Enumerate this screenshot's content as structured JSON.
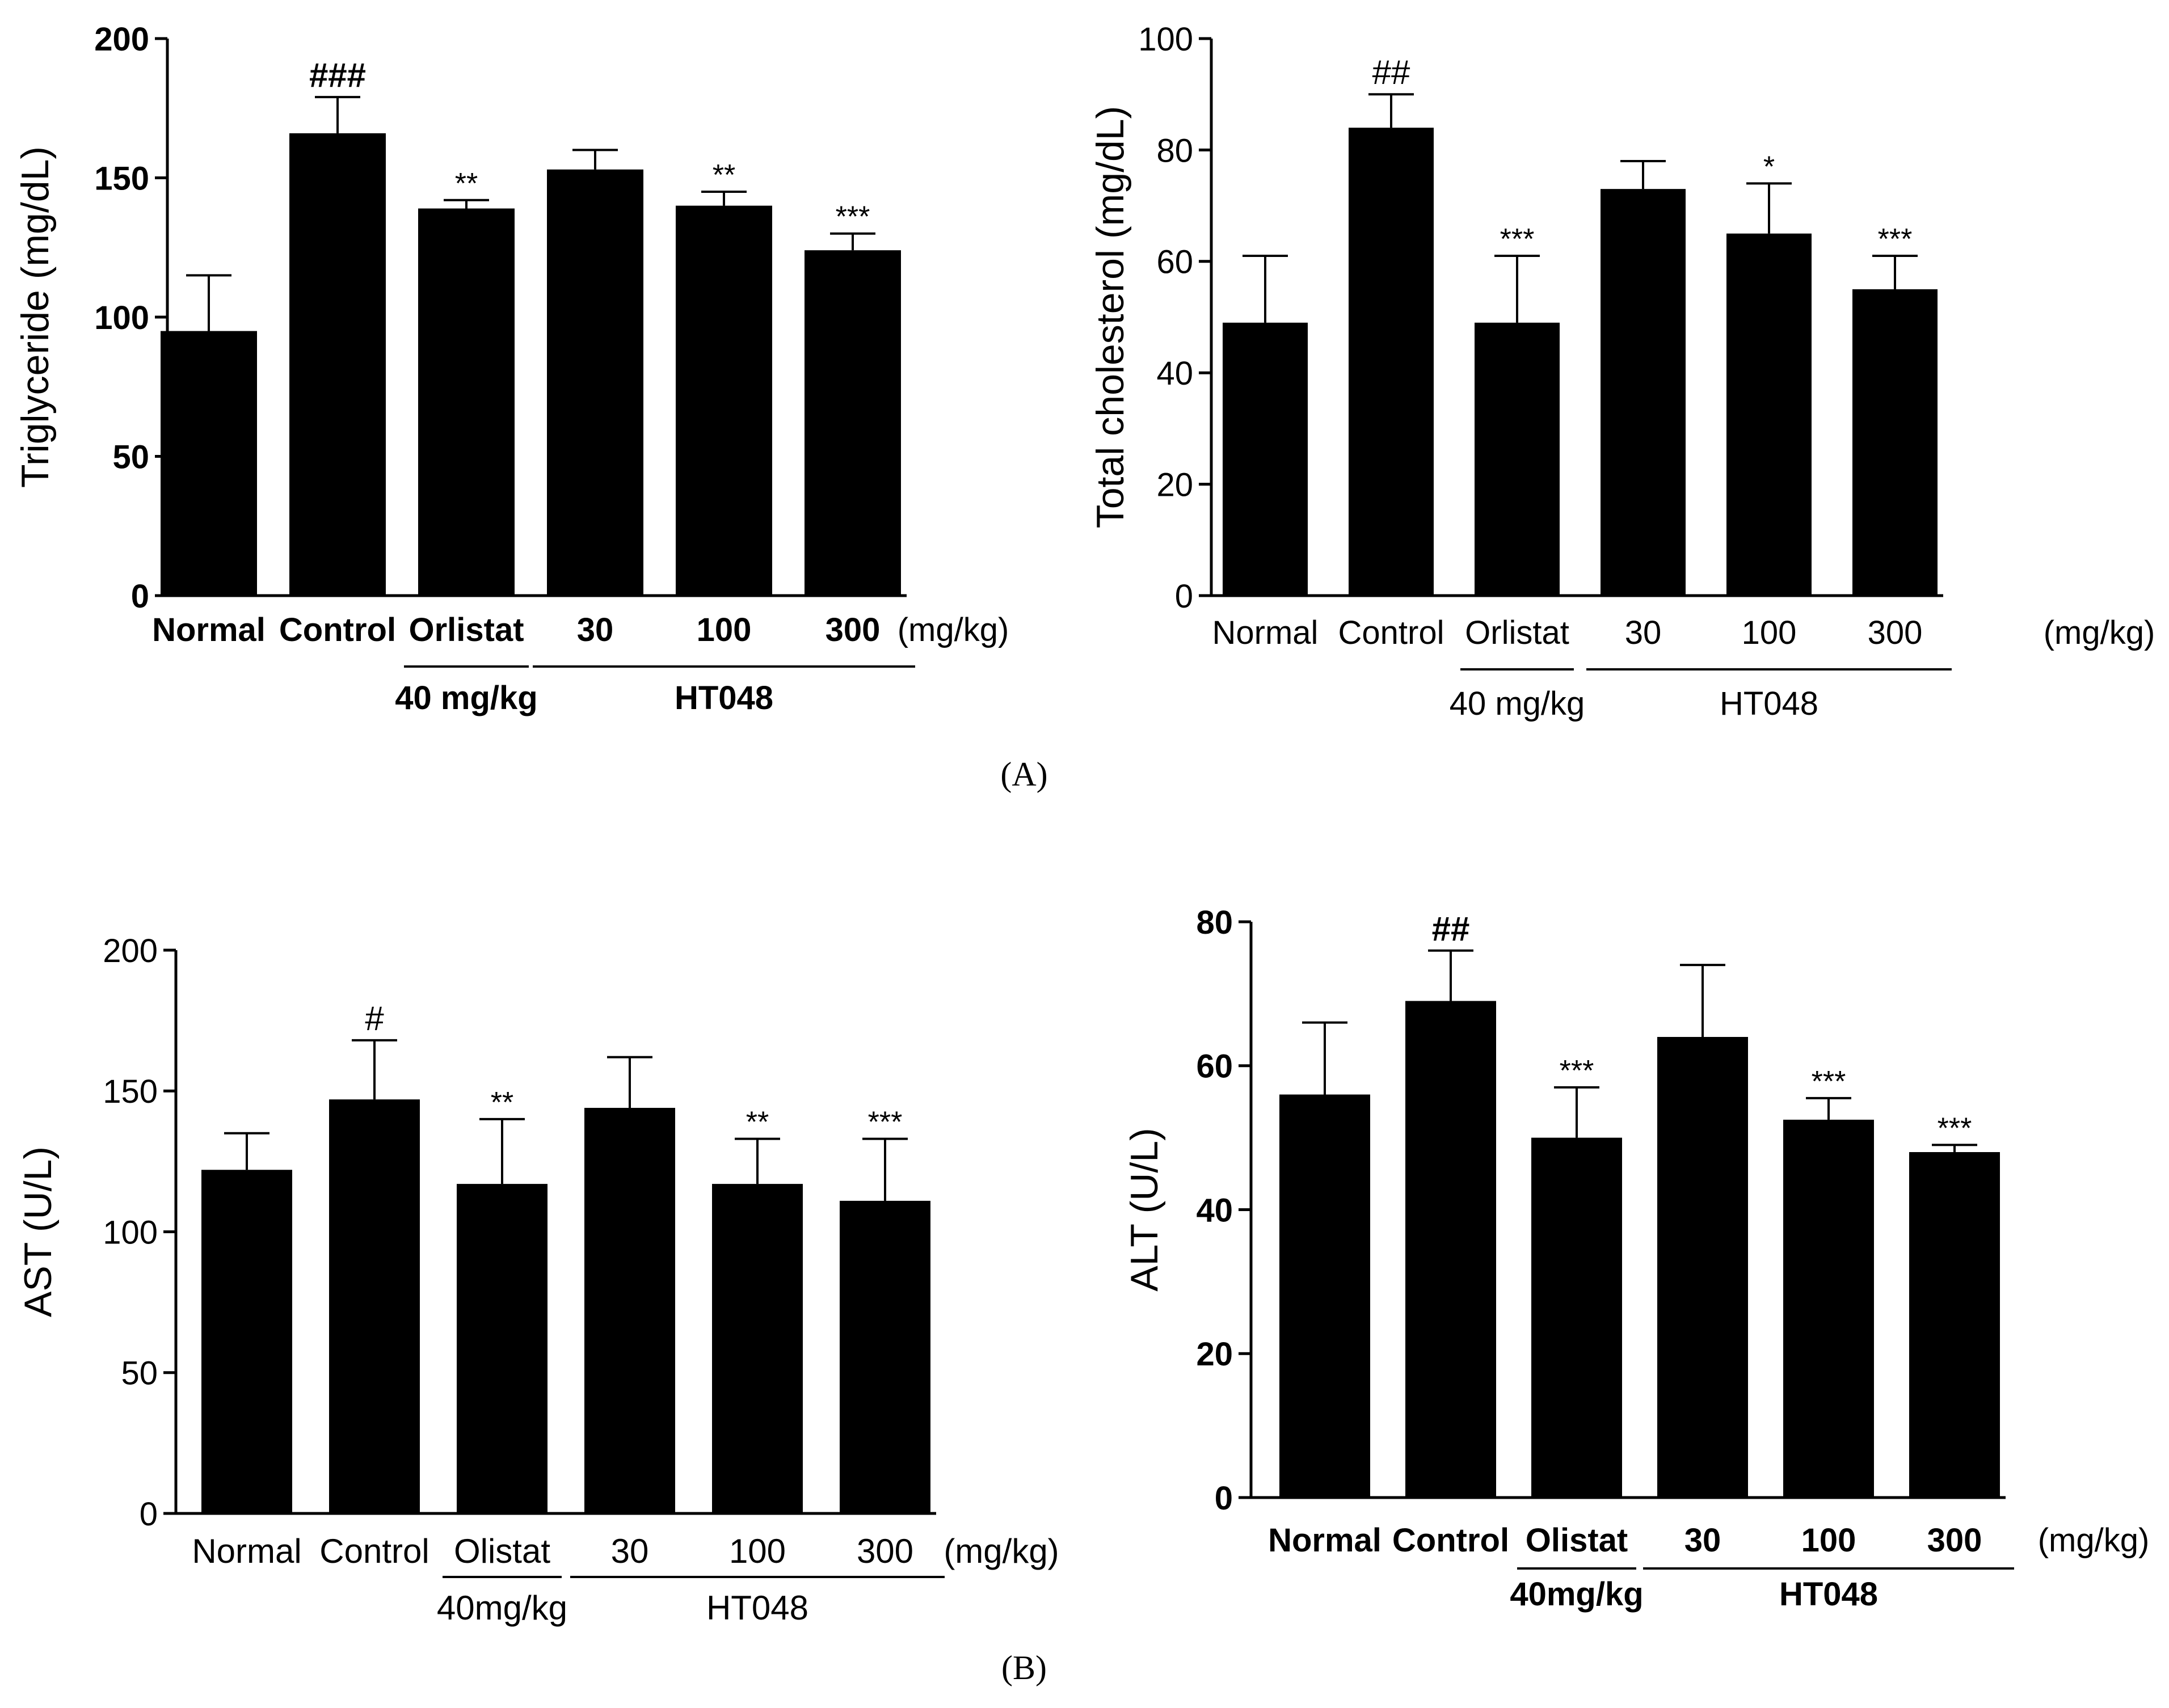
{
  "panel_labels": [
    "(A)",
    "(B)"
  ],
  "chart_data": [
    {
      "type": "bar",
      "panel": "A",
      "title": "",
      "ylabel": "Triglyceride (mg/dL)",
      "xlabel": "",
      "categories": [
        "Normal",
        "Control",
        "Orlistat",
        "30",
        "100",
        "300"
      ],
      "values": [
        95,
        166,
        139,
        153,
        140,
        124
      ],
      "errors": [
        20,
        13,
        3,
        7,
        5,
        6
      ],
      "annotations": [
        "",
        "###",
        "**",
        "",
        "**",
        "***"
      ],
      "ylim": [
        0,
        200
      ],
      "yticks": [
        0,
        50,
        100,
        150,
        200
      ],
      "unit_label": "(mg/kg)",
      "groups": [
        {
          "label": "40 mg/kg",
          "from": 2,
          "to": 2
        },
        {
          "label": "HT048",
          "from": 3,
          "to": 5
        }
      ],
      "bold_ticks": true,
      "color": "#000000"
    },
    {
      "type": "bar",
      "panel": "A",
      "title": "",
      "ylabel": "Total cholesterol (mg/dL)",
      "xlabel": "",
      "categories": [
        "Normal",
        "Control",
        "Orlistat",
        "30",
        "100",
        "300"
      ],
      "values": [
        49,
        84,
        49,
        73,
        65,
        55
      ],
      "errors": [
        12,
        6,
        12,
        5,
        9,
        6
      ],
      "annotations": [
        "",
        "##",
        "***",
        "",
        "*",
        "***"
      ],
      "ylim": [
        0,
        100
      ],
      "yticks": [
        0,
        20,
        40,
        60,
        80,
        100
      ],
      "unit_label": "(mg/kg)",
      "groups": [
        {
          "label": "40 mg/kg",
          "from": 2,
          "to": 2
        },
        {
          "label": "HT048",
          "from": 3,
          "to": 5
        }
      ],
      "bold_ticks": false,
      "color": "#000000"
    },
    {
      "type": "bar",
      "panel": "B",
      "title": "",
      "ylabel": "AST (U/L)",
      "xlabel": "",
      "categories": [
        "Normal",
        "Control",
        "Olistat",
        "30",
        "100",
        "300"
      ],
      "values": [
        122,
        147,
        117,
        144,
        117,
        111
      ],
      "errors": [
        13,
        21,
        23,
        18,
        16,
        22
      ],
      "annotations": [
        "",
        "#",
        "**",
        "",
        "**",
        "***"
      ],
      "ylim": [
        0,
        200
      ],
      "yticks": [
        0,
        50,
        100,
        150,
        200
      ],
      "unit_label": "(mg/kg)",
      "groups": [
        {
          "label": "40mg/kg",
          "from": 2,
          "to": 2
        },
        {
          "label": "HT048",
          "from": 3,
          "to": 5
        }
      ],
      "bold_ticks": false,
      "color": "#000000"
    },
    {
      "type": "bar",
      "panel": "B",
      "title": "",
      "ylabel": "ALT (U/L)",
      "xlabel": "",
      "categories": [
        "Normal",
        "Control",
        "Olistat",
        "30",
        "100",
        "300"
      ],
      "values": [
        56,
        69,
        50,
        64,
        52.5,
        48
      ],
      "errors": [
        10,
        7,
        7,
        10,
        3,
        1
      ],
      "annotations": [
        "",
        "##",
        "***",
        "",
        "***",
        "***"
      ],
      "ylim": [
        0,
        80
      ],
      "yticks": [
        0,
        20,
        40,
        60,
        80
      ],
      "unit_label": "(mg/kg)",
      "groups": [
        {
          "label": "40mg/kg",
          "from": 2,
          "to": 2
        },
        {
          "label": "HT048",
          "from": 3,
          "to": 5
        }
      ],
      "bold_ticks": true,
      "color": "#000000"
    }
  ]
}
